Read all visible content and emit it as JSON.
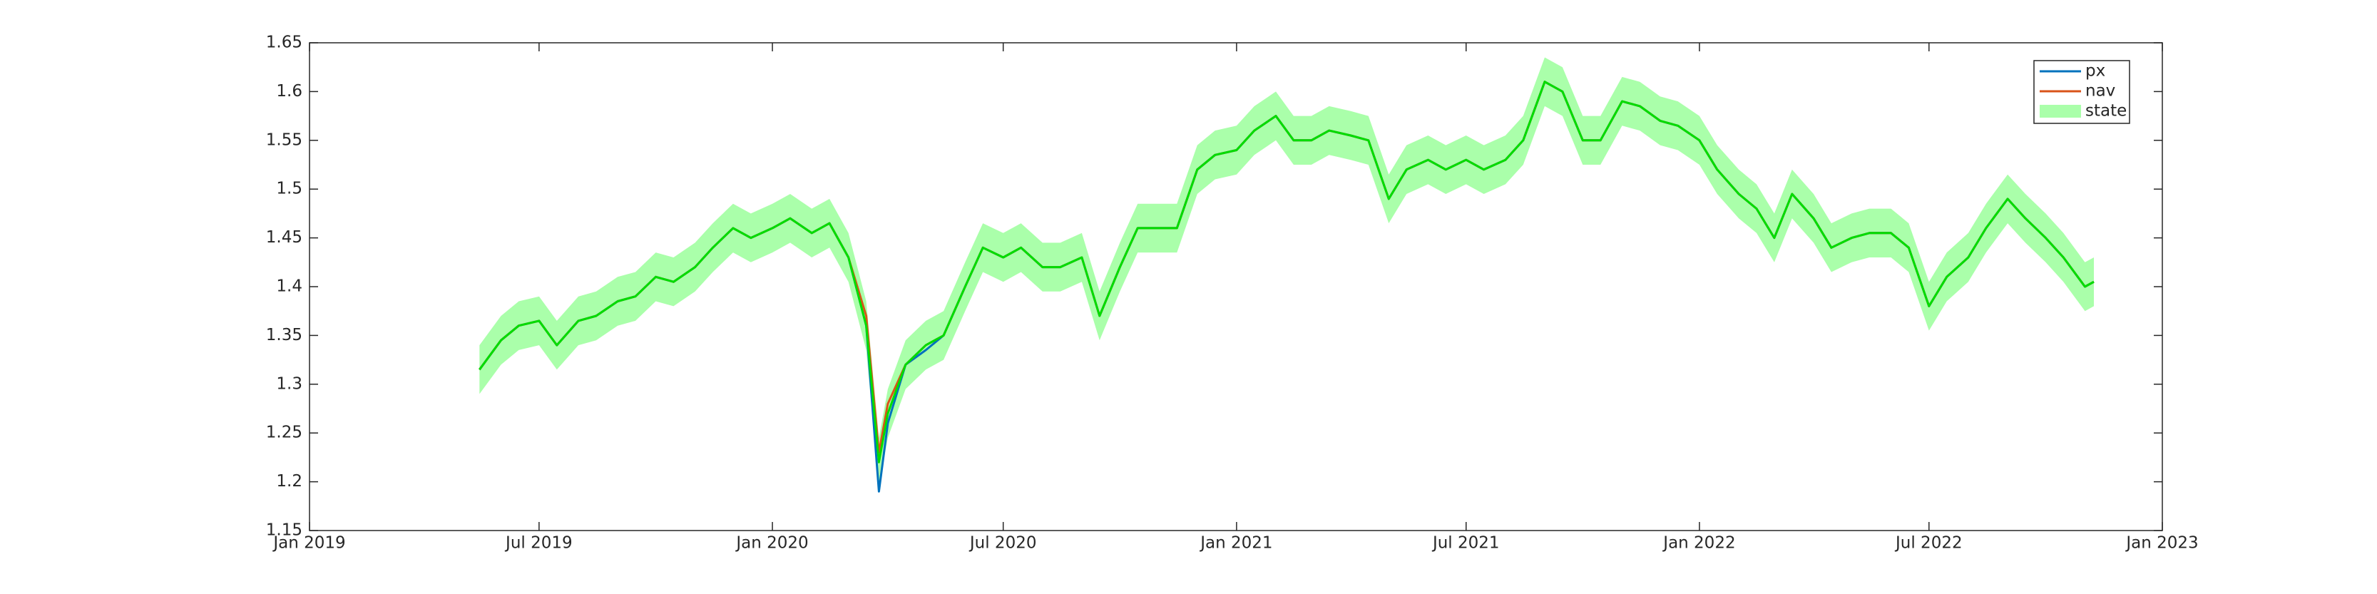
{
  "chart_data": {
    "type": "line",
    "x": [
      "2019-05-15",
      "2019-06-01",
      "2019-06-15",
      "2019-07-01",
      "2019-07-15",
      "2019-08-01",
      "2019-08-15",
      "2019-09-01",
      "2019-09-15",
      "2019-10-01",
      "2019-10-15",
      "2019-11-01",
      "2019-11-15",
      "2019-12-01",
      "2019-12-15",
      "2020-01-01",
      "2020-01-15",
      "2020-02-01",
      "2020-02-15",
      "2020-03-01",
      "2020-03-15",
      "2020-03-25",
      "2020-04-01",
      "2020-04-15",
      "2020-05-01",
      "2020-05-15",
      "2020-06-01",
      "2020-06-15",
      "2020-07-01",
      "2020-07-15",
      "2020-08-01",
      "2020-08-15",
      "2020-09-01",
      "2020-09-15",
      "2020-10-01",
      "2020-10-15",
      "2020-11-01",
      "2020-11-15",
      "2020-12-01",
      "2020-12-15",
      "2021-01-01",
      "2021-01-15",
      "2021-02-01",
      "2021-02-15",
      "2021-03-01",
      "2021-03-15",
      "2021-04-01",
      "2021-04-15",
      "2021-05-01",
      "2021-05-15",
      "2021-06-01",
      "2021-06-15",
      "2021-07-01",
      "2021-07-15",
      "2021-08-01",
      "2021-08-15",
      "2021-09-01",
      "2021-09-15",
      "2021-10-01",
      "2021-10-15",
      "2021-11-01",
      "2021-11-15",
      "2021-12-01",
      "2021-12-15",
      "2022-01-01",
      "2022-01-15",
      "2022-02-01",
      "2022-02-15",
      "2022-03-01",
      "2022-03-15",
      "2022-04-01",
      "2022-04-15",
      "2022-05-01",
      "2022-05-15",
      "2022-06-01",
      "2022-06-15",
      "2022-07-01",
      "2022-07-15",
      "2022-08-01",
      "2022-08-15",
      "2022-09-01",
      "2022-09-15",
      "2022-10-01",
      "2022-10-15",
      "2022-11-01",
      "2022-11-08"
    ],
    "series": [
      {
        "name": "px",
        "color": "#0072bd",
        "values": [
          1.315,
          1.345,
          1.36,
          1.365,
          1.34,
          1.365,
          1.37,
          1.385,
          1.39,
          1.41,
          1.405,
          1.42,
          1.44,
          1.46,
          1.45,
          1.46,
          1.47,
          1.455,
          1.465,
          1.43,
          1.36,
          1.19,
          1.26,
          1.32,
          1.335,
          1.35,
          1.4,
          1.44,
          1.43,
          1.44,
          1.42,
          1.42,
          1.43,
          1.37,
          1.42,
          1.46,
          1.46,
          1.46,
          1.52,
          1.535,
          1.54,
          1.56,
          1.575,
          1.55,
          1.55,
          1.56,
          1.555,
          1.55,
          1.49,
          1.52,
          1.53,
          1.52,
          1.53,
          1.52,
          1.53,
          1.55,
          1.61,
          1.6,
          1.55,
          1.55,
          1.59,
          1.585,
          1.57,
          1.565,
          1.55,
          1.52,
          1.495,
          1.48,
          1.45,
          1.495,
          1.47,
          1.44,
          1.45,
          1.455,
          1.455,
          1.44,
          1.38,
          1.41,
          1.43,
          1.46,
          1.49,
          1.47,
          1.45,
          1.43,
          1.4,
          1.405
        ]
      },
      {
        "name": "nav",
        "color": "#d95319",
        "values": [
          1.315,
          1.345,
          1.36,
          1.365,
          1.34,
          1.365,
          1.37,
          1.385,
          1.39,
          1.41,
          1.405,
          1.42,
          1.44,
          1.46,
          1.45,
          1.46,
          1.47,
          1.455,
          1.465,
          1.43,
          1.37,
          1.23,
          1.28,
          1.32,
          1.34,
          1.35,
          1.4,
          1.44,
          1.43,
          1.44,
          1.42,
          1.42,
          1.43,
          1.37,
          1.42,
          1.46,
          1.46,
          1.46,
          1.52,
          1.535,
          1.54,
          1.56,
          1.575,
          1.55,
          1.55,
          1.56,
          1.555,
          1.55,
          1.49,
          1.52,
          1.53,
          1.52,
          1.53,
          1.52,
          1.53,
          1.55,
          1.61,
          1.6,
          1.55,
          1.55,
          1.59,
          1.585,
          1.57,
          1.565,
          1.55,
          1.52,
          1.495,
          1.48,
          1.45,
          1.495,
          1.47,
          1.44,
          1.45,
          1.455,
          1.455,
          1.44,
          1.38,
          1.41,
          1.43,
          1.46,
          1.49,
          1.47,
          1.45,
          1.43,
          1.4,
          1.405
        ]
      },
      {
        "name": "state",
        "color": "#00dd00",
        "band_color": "#aaffaa",
        "values": [
          1.315,
          1.345,
          1.36,
          1.365,
          1.34,
          1.365,
          1.37,
          1.385,
          1.39,
          1.41,
          1.405,
          1.42,
          1.44,
          1.46,
          1.45,
          1.46,
          1.47,
          1.455,
          1.465,
          1.43,
          1.36,
          1.22,
          1.27,
          1.32,
          1.34,
          1.35,
          1.4,
          1.44,
          1.43,
          1.44,
          1.42,
          1.42,
          1.43,
          1.37,
          1.42,
          1.46,
          1.46,
          1.46,
          1.52,
          1.535,
          1.54,
          1.56,
          1.575,
          1.55,
          1.55,
          1.56,
          1.555,
          1.55,
          1.49,
          1.52,
          1.53,
          1.52,
          1.53,
          1.52,
          1.53,
          1.55,
          1.61,
          1.6,
          1.55,
          1.55,
          1.59,
          1.585,
          1.57,
          1.565,
          1.55,
          1.52,
          1.495,
          1.48,
          1.45,
          1.495,
          1.47,
          1.44,
          1.45,
          1.455,
          1.455,
          1.44,
          1.38,
          1.41,
          1.43,
          1.46,
          1.49,
          1.47,
          1.45,
          1.43,
          1.4,
          1.405
        ],
        "upper": [
          1.34,
          1.37,
          1.385,
          1.39,
          1.365,
          1.39,
          1.395,
          1.41,
          1.415,
          1.435,
          1.43,
          1.445,
          1.465,
          1.485,
          1.475,
          1.485,
          1.495,
          1.48,
          1.49,
          1.455,
          1.385,
          1.245,
          1.295,
          1.345,
          1.365,
          1.375,
          1.425,
          1.465,
          1.455,
          1.465,
          1.445,
          1.445,
          1.455,
          1.395,
          1.445,
          1.485,
          1.485,
          1.485,
          1.545,
          1.56,
          1.565,
          1.585,
          1.6,
          1.575,
          1.575,
          1.585,
          1.58,
          1.575,
          1.515,
          1.545,
          1.555,
          1.545,
          1.555,
          1.545,
          1.555,
          1.575,
          1.635,
          1.625,
          1.575,
          1.575,
          1.615,
          1.61,
          1.595,
          1.59,
          1.575,
          1.545,
          1.52,
          1.505,
          1.475,
          1.52,
          1.495,
          1.465,
          1.475,
          1.48,
          1.48,
          1.465,
          1.405,
          1.435,
          1.455,
          1.485,
          1.515,
          1.495,
          1.475,
          1.455,
          1.425,
          1.43
        ],
        "lower": [
          1.29,
          1.32,
          1.335,
          1.34,
          1.315,
          1.34,
          1.345,
          1.36,
          1.365,
          1.385,
          1.38,
          1.395,
          1.415,
          1.435,
          1.425,
          1.435,
          1.445,
          1.43,
          1.44,
          1.405,
          1.335,
          1.195,
          1.245,
          1.295,
          1.315,
          1.325,
          1.375,
          1.415,
          1.405,
          1.415,
          1.395,
          1.395,
          1.405,
          1.345,
          1.395,
          1.435,
          1.435,
          1.435,
          1.495,
          1.51,
          1.515,
          1.535,
          1.55,
          1.525,
          1.525,
          1.535,
          1.53,
          1.525,
          1.465,
          1.495,
          1.505,
          1.495,
          1.505,
          1.495,
          1.505,
          1.525,
          1.585,
          1.575,
          1.525,
          1.525,
          1.565,
          1.56,
          1.545,
          1.54,
          1.525,
          1.495,
          1.47,
          1.455,
          1.425,
          1.47,
          1.445,
          1.415,
          1.425,
          1.43,
          1.43,
          1.415,
          1.355,
          1.385,
          1.405,
          1.435,
          1.465,
          1.445,
          1.425,
          1.405,
          1.375,
          1.38
        ]
      }
    ],
    "xlim": [
      "2019-01-01",
      "2023-01-01"
    ],
    "xticks": [
      {
        "value": "2019-01-01",
        "label": "Jan 2019"
      },
      {
        "value": "2019-07-01",
        "label": "Jul 2019"
      },
      {
        "value": "2020-01-01",
        "label": "Jan 2020"
      },
      {
        "value": "2020-07-01",
        "label": "Jul 2020"
      },
      {
        "value": "2021-01-01",
        "label": "Jan 2021"
      },
      {
        "value": "2021-07-01",
        "label": "Jul 2021"
      },
      {
        "value": "2022-01-01",
        "label": "Jan 2022"
      },
      {
        "value": "2022-07-01",
        "label": "Jul 2022"
      },
      {
        "value": "2023-01-01",
        "label": "Jan 2023"
      }
    ],
    "ylim": [
      1.15,
      1.65
    ],
    "yticks": [
      1.15,
      1.2,
      1.25,
      1.3,
      1.35,
      1.4,
      1.45,
      1.5,
      1.55,
      1.6,
      1.65
    ],
    "legend": "top-right"
  }
}
